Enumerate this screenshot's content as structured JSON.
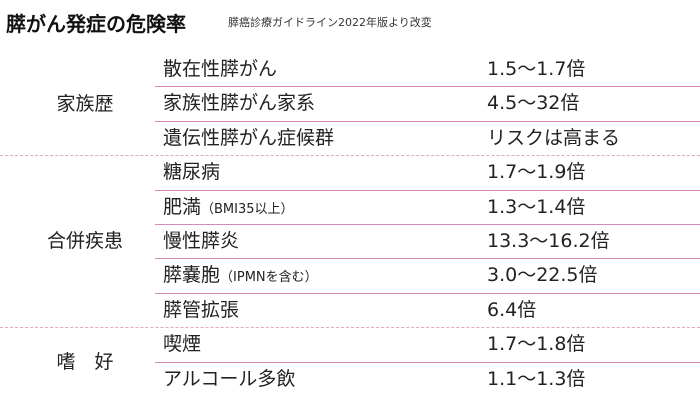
{
  "header": {
    "title": "膵がん発症の危険率",
    "source": "膵癌診療ガイドライン2022年版より改変"
  },
  "groups": [
    {
      "label": "家族歴",
      "rows": [
        {
          "factor": "散在性膵がん",
          "risk": "1.5～1.7倍"
        },
        {
          "factor": "家族性膵がん家系",
          "risk": "4.5～32倍"
        },
        {
          "factor": "遺伝性膵がん症候群",
          "risk": "リスクは高まる"
        }
      ]
    },
    {
      "label": "合併疾患",
      "rows": [
        {
          "factor": "糖尿病",
          "risk": "1.7～1.9倍"
        },
        {
          "factor": "肥満",
          "note": "（BMI35以上）",
          "risk": "1.3～1.4倍"
        },
        {
          "factor": "慢性膵炎",
          "risk": "13.3～16.2倍"
        },
        {
          "factor": "膵嚢胞",
          "note": "（IPMNを含む）",
          "risk": "3.0～22.5倍"
        },
        {
          "factor": "膵管拡張",
          "risk": "6.4倍"
        }
      ]
    },
    {
      "label": "嗜　好",
      "rows": [
        {
          "factor": "喫煙",
          "risk": "1.7～1.8倍"
        },
        {
          "factor": "アルコール多飲",
          "risk": "1.1～1.3倍"
        }
      ]
    }
  ]
}
